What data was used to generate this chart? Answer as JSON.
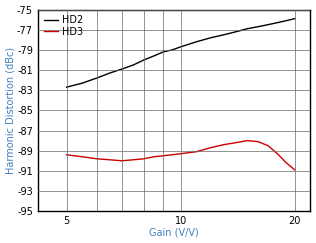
{
  "title": "",
  "xlabel": "Gain (V/V)",
  "ylabel": "Harmonic Distortion (dBc)",
  "ylim": [
    -95,
    -75
  ],
  "yticks": [
    -95,
    -93,
    -91,
    -89,
    -87,
    -85,
    -83,
    -81,
    -79,
    -77,
    -75
  ],
  "xlim_log": [
    4.2,
    22
  ],
  "xticks": [
    5,
    10,
    20
  ],
  "hd2_x": [
    5,
    5.5,
    6,
    6.5,
    7,
    7.5,
    8,
    8.5,
    9,
    9.5,
    10,
    11,
    12,
    13,
    14,
    15,
    16,
    17,
    18,
    19,
    20
  ],
  "hd2_y": [
    -82.7,
    -82.3,
    -81.8,
    -81.3,
    -80.9,
    -80.5,
    -80.0,
    -79.6,
    -79.2,
    -79.0,
    -78.7,
    -78.2,
    -77.8,
    -77.5,
    -77.2,
    -76.9,
    -76.7,
    -76.5,
    -76.3,
    -76.1,
    -75.9
  ],
  "hd3_x": [
    5,
    5.5,
    6,
    6.5,
    7,
    7.5,
    8,
    8.5,
    9,
    9.5,
    10,
    11,
    12,
    13,
    14,
    15,
    16,
    17,
    18,
    19,
    20
  ],
  "hd3_y": [
    -89.4,
    -89.6,
    -89.8,
    -89.9,
    -90.0,
    -89.9,
    -89.8,
    -89.6,
    -89.5,
    -89.4,
    -89.3,
    -89.1,
    -88.7,
    -88.4,
    -88.2,
    -88.0,
    -88.1,
    -88.5,
    -89.3,
    -90.2,
    -90.9
  ],
  "hd2_color": "#000000",
  "hd3_color": "#cc0000",
  "hd2_label": "HD2",
  "hd3_label": "HD3",
  "grid_color": "#666666",
  "label_color": "#4080c0",
  "tick_label_color": "#000000",
  "spine_color": "#000000",
  "background_color": "#ffffff",
  "line_width": 1.0,
  "font_size": 7,
  "legend_font_size": 7,
  "tick_font_size": 7
}
